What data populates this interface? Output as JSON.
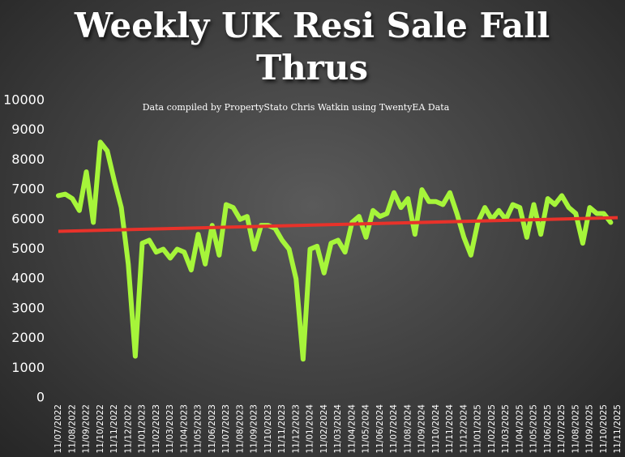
{
  "chart_data": {
    "type": "line",
    "title": "Weekly UK Resi Sale Fall Thrus",
    "subtitle": "Data compiled by PropertyStato Chris Watkin using TwentyEA Data",
    "categories": [
      "11/07/2022",
      null,
      "11/08/2022",
      null,
      "11/09/2022",
      null,
      "11/10/2022",
      null,
      "11/11/2022",
      null,
      "11/12/2022",
      null,
      "11/01/2023",
      null,
      "11/02/2023",
      null,
      "11/03/2023",
      null,
      "11/04/2023",
      null,
      "11/05/2023",
      null,
      "11/06/2023",
      null,
      "11/07/2023",
      null,
      "11/08/2023",
      null,
      "11/09/2023",
      null,
      "11/10/2023",
      null,
      "11/11/2023",
      null,
      "11/12/2023",
      null,
      "11/01/2024",
      null,
      "11/02/2024",
      null,
      "11/03/2024",
      null,
      "11/04/2024",
      null,
      "11/05/2024",
      null,
      "11/06/2024",
      null,
      "11/07/2024",
      null,
      "11/08/2024",
      null,
      "11/09/2024",
      null,
      "11/10/2024",
      null,
      "11/11/2024",
      null,
      "11/12/2024",
      null,
      "11/01/2025",
      null,
      "11/02/2025",
      null,
      "11/03/2025",
      null,
      "11/04/2025",
      null,
      "11/05/2025",
      null,
      "11/06/2025",
      null,
      "11/07/2025",
      null,
      "11/08/2025",
      null,
      "11/09/2025",
      null,
      "11/10/2025",
      null,
      "11/11/2025"
    ],
    "series": [
      {
        "color": "#a6f53a",
        "values": [
          6800,
          6850,
          6700,
          6300,
          7600,
          5900,
          8600,
          8300,
          7300,
          6400,
          4500,
          1400,
          5200,
          5300,
          4900,
          5000,
          4700,
          5000,
          4900,
          4300,
          5500,
          4500,
          5800,
          4800,
          6500,
          6400,
          6000,
          6100,
          5000,
          5800,
          5800,
          5700,
          5300,
          5000,
          4000,
          1300,
          5000,
          5100,
          4200,
          5200,
          5300,
          4900,
          5900,
          6100,
          5400,
          6300,
          6100,
          6200,
          6900,
          6400,
          6700,
          5500,
          7000,
          6600,
          6600,
          6500,
          6900,
          6200,
          5400,
          4800,
          5900,
          6400,
          6000,
          6300,
          6000,
          6500,
          6400,
          5400,
          6500,
          5500,
          6700,
          6500,
          6800,
          6400,
          6200,
          5200,
          6400,
          6200,
          6200,
          5900,
          null
        ]
      }
    ],
    "trendline": {
      "color": "#e8322a",
      "values": [
        5600,
        6060
      ]
    },
    "ylim": [
      0,
      10000
    ],
    "yticks": [
      0,
      1000,
      2000,
      3000,
      4000,
      5000,
      6000,
      7000,
      8000,
      9000,
      10000
    ]
  }
}
